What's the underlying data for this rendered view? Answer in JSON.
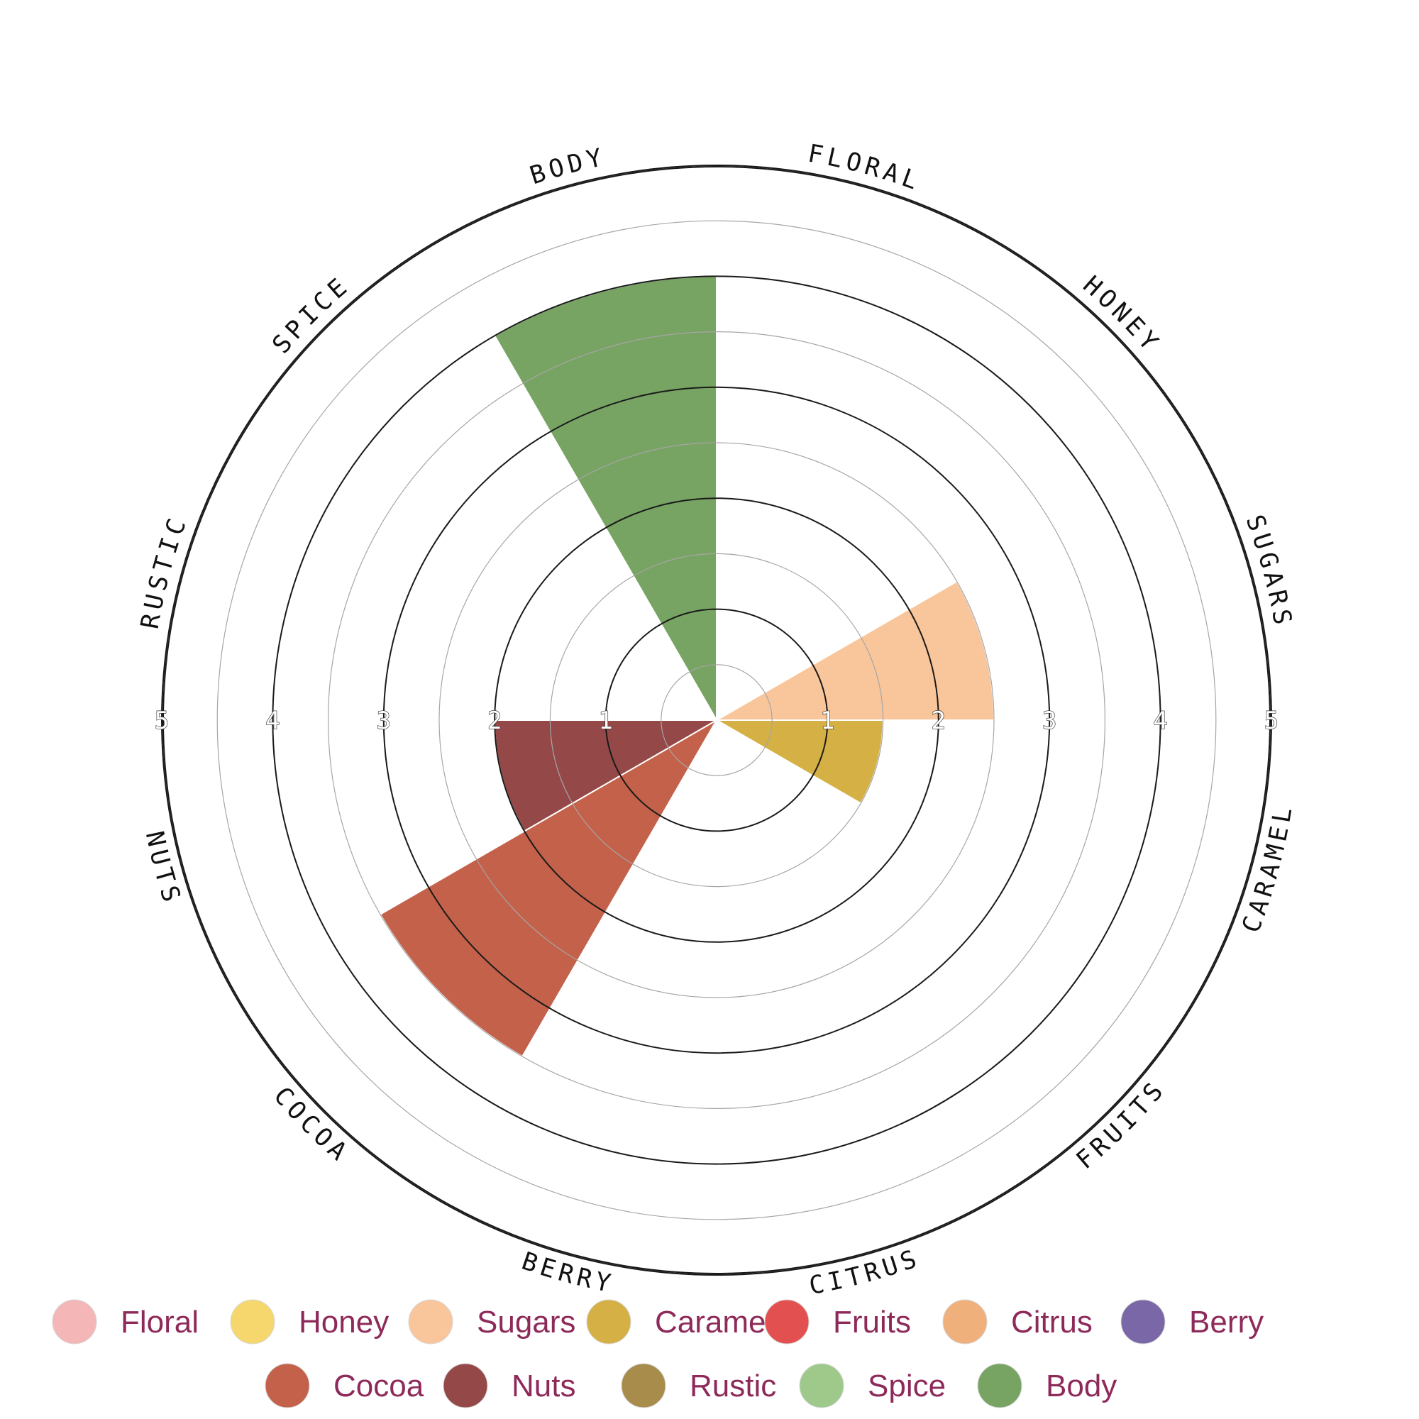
{
  "chart_data": {
    "type": "polar-area",
    "title": "",
    "radial_range": [
      0,
      5
    ],
    "radial_ticks": [
      1,
      2,
      3,
      4,
      5
    ],
    "grid": true,
    "legend_position": "bottom",
    "categories": [
      "Floral",
      "Honey",
      "Sugars",
      "Caramel",
      "Fruits",
      "Citrus",
      "Berry",
      "Cocoa",
      "Nuts",
      "Rustic",
      "Spice",
      "Body"
    ],
    "axis_labels": [
      "FLORAL",
      "HONEY",
      "SUGARS",
      "CARAMEL",
      "FRUITS",
      "CITRUS",
      "BERRY",
      "COCOA",
      "NUTS",
      "RUSTIC",
      "SPICE",
      "BODY"
    ],
    "values": [
      0,
      0,
      2.5,
      1.5,
      0,
      0,
      0,
      3.5,
      2,
      0,
      0,
      4
    ],
    "colors": [
      "#f4b6b6",
      "#f5d76e",
      "#f9c59a",
      "#d4b045",
      "#e35050",
      "#f0b07c",
      "#7a67a8",
      "#c4614a",
      "#954848",
      "#a88c4c",
      "#9ec98a",
      "#77a363"
    ],
    "legend": [
      {
        "label": "Floral",
        "color": "#f4b6b6"
      },
      {
        "label": "Honey",
        "color": "#f5d76e"
      },
      {
        "label": "Sugars",
        "color": "#f9c59a"
      },
      {
        "label": "Caramel",
        "color": "#d4b045"
      },
      {
        "label": "Fruits",
        "color": "#e35050"
      },
      {
        "label": "Citrus",
        "color": "#f0b07c"
      },
      {
        "label": "Berry",
        "color": "#7a67a8"
      },
      {
        "label": "Cocoa",
        "color": "#c4614a"
      },
      {
        "label": "Nuts",
        "color": "#954848"
      },
      {
        "label": "Rustic",
        "color": "#a88c4c"
      },
      {
        "label": "Spice",
        "color": "#9ec98a"
      },
      {
        "label": "Body",
        "color": "#77a363"
      }
    ]
  }
}
